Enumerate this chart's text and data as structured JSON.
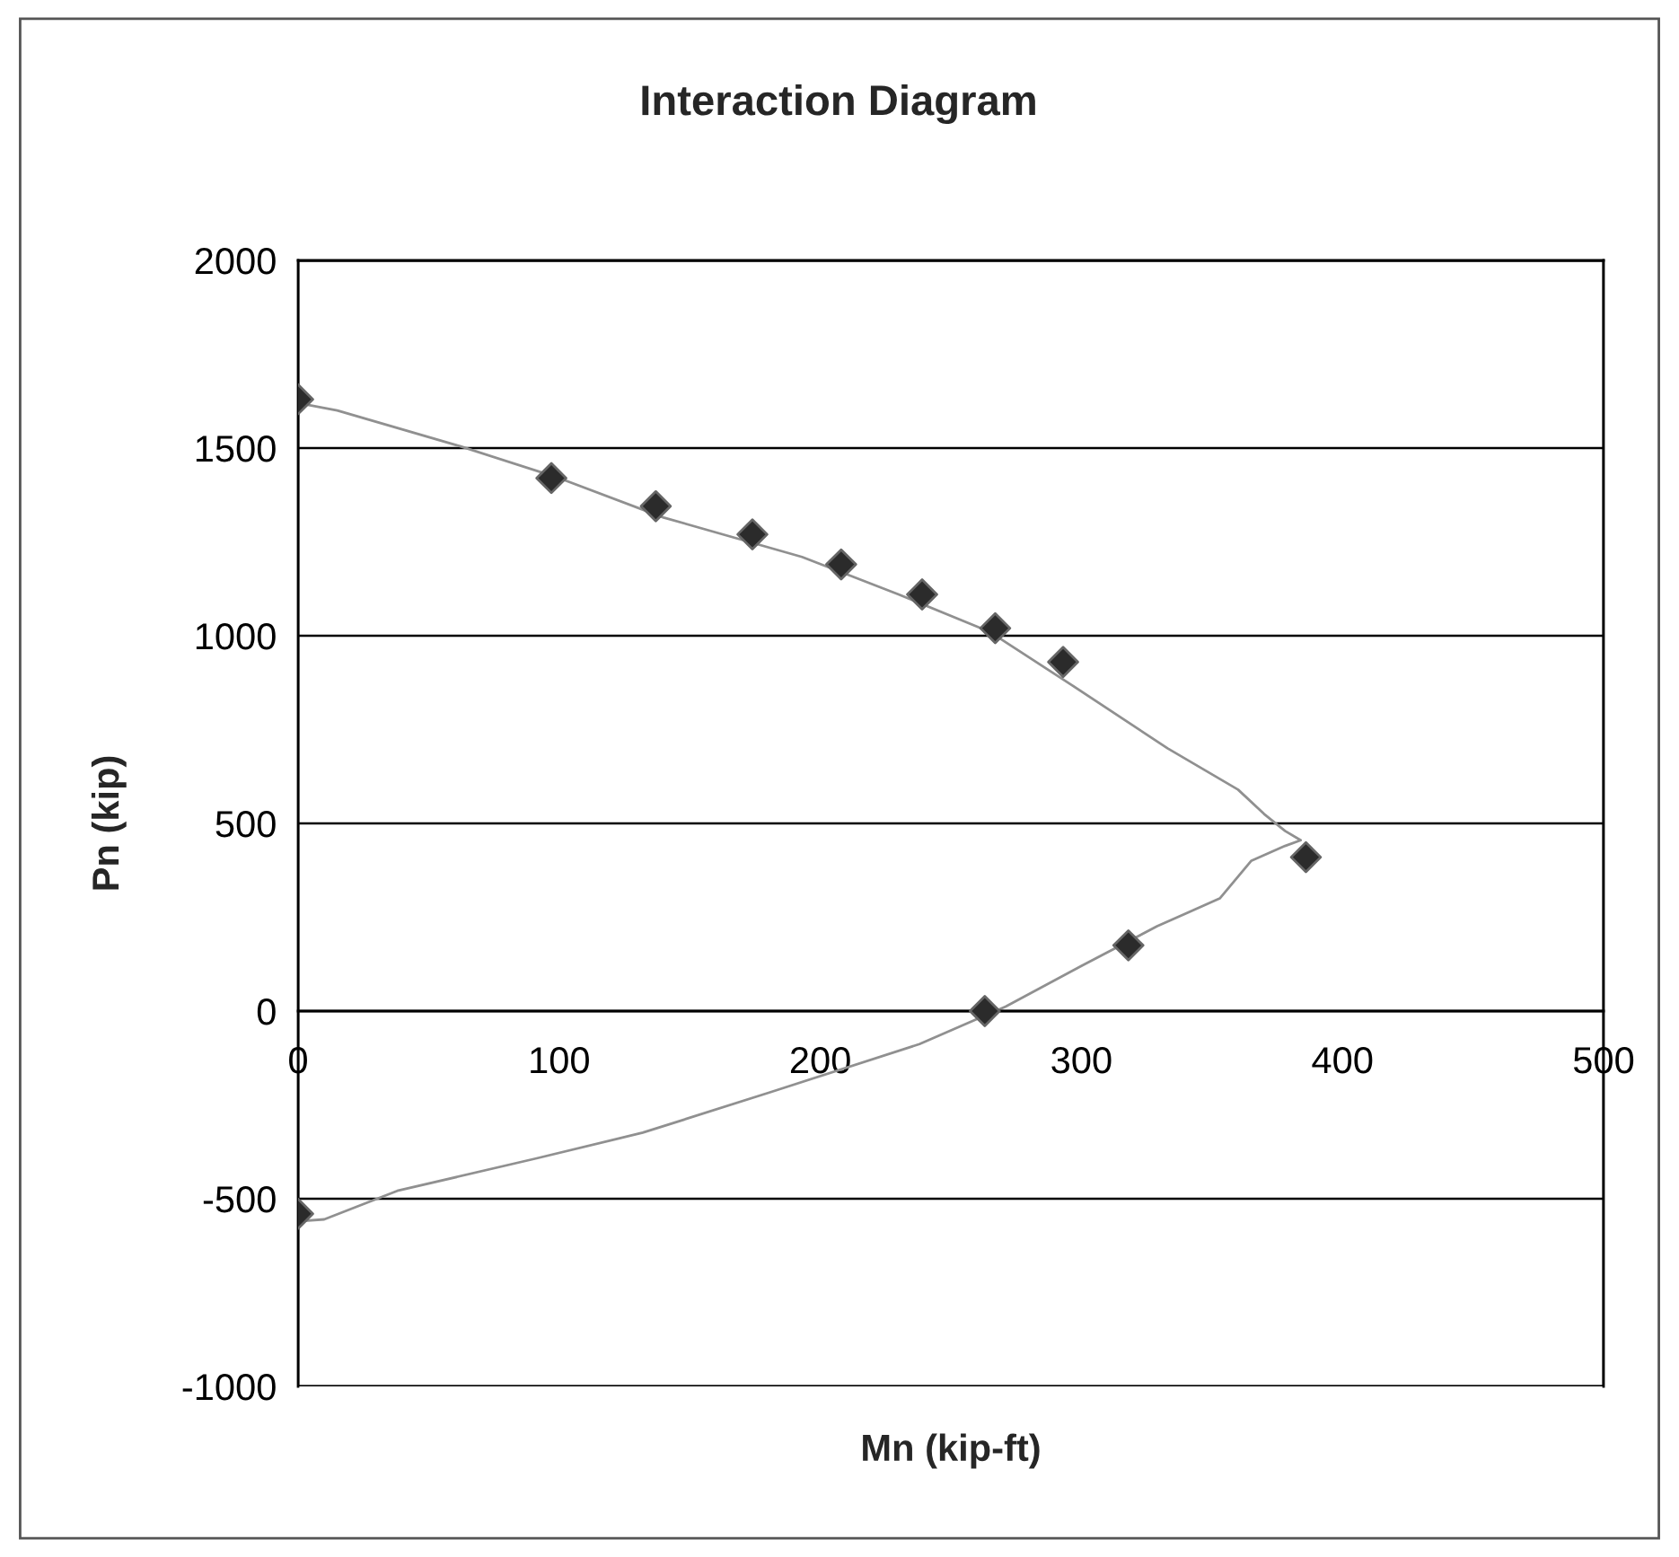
{
  "chart_data": {
    "type": "scatter",
    "title": "Interaction Diagram",
    "xlabel": "Mn (kip-ft)",
    "ylabel": "Pn (kip)",
    "xlim": [
      0,
      500
    ],
    "xticks": [
      0,
      100,
      200,
      300,
      400,
      500
    ],
    "ylim": [
      -1000,
      2000
    ],
    "yticks": [
      -1000,
      -500,
      0,
      500,
      1000,
      1500,
      2000
    ],
    "grid": "y",
    "series": [
      {
        "color": "#2b2b2b",
        "marker": "diamond",
        "x": [
          0,
          97,
          137,
          174,
          208,
          239,
          267,
          293,
          386,
          318,
          263,
          0
        ],
        "values": [
          1630,
          1420,
          1345,
          1270,
          1190,
          1110,
          1020,
          930,
          410,
          175,
          0,
          -540
        ]
      },
      {
        "type": "line",
        "color": "#909090",
        "x": [
          0,
          15,
          62,
          100,
          140,
          193,
          230,
          265,
          296,
          333,
          360,
          370,
          378,
          384,
          378,
          365,
          353,
          329,
          300,
          271,
          238,
          181,
          132,
          91,
          38,
          10,
          0
        ],
        "values": [
          1620,
          1600,
          1505,
          1420,
          1315,
          1210,
          1110,
          1010,
          870,
          700,
          590,
          525,
          480,
          455,
          440,
          400,
          300,
          226,
          120,
          12,
          -88,
          -216,
          -324,
          -393,
          -479,
          -555,
          -560
        ]
      }
    ]
  }
}
